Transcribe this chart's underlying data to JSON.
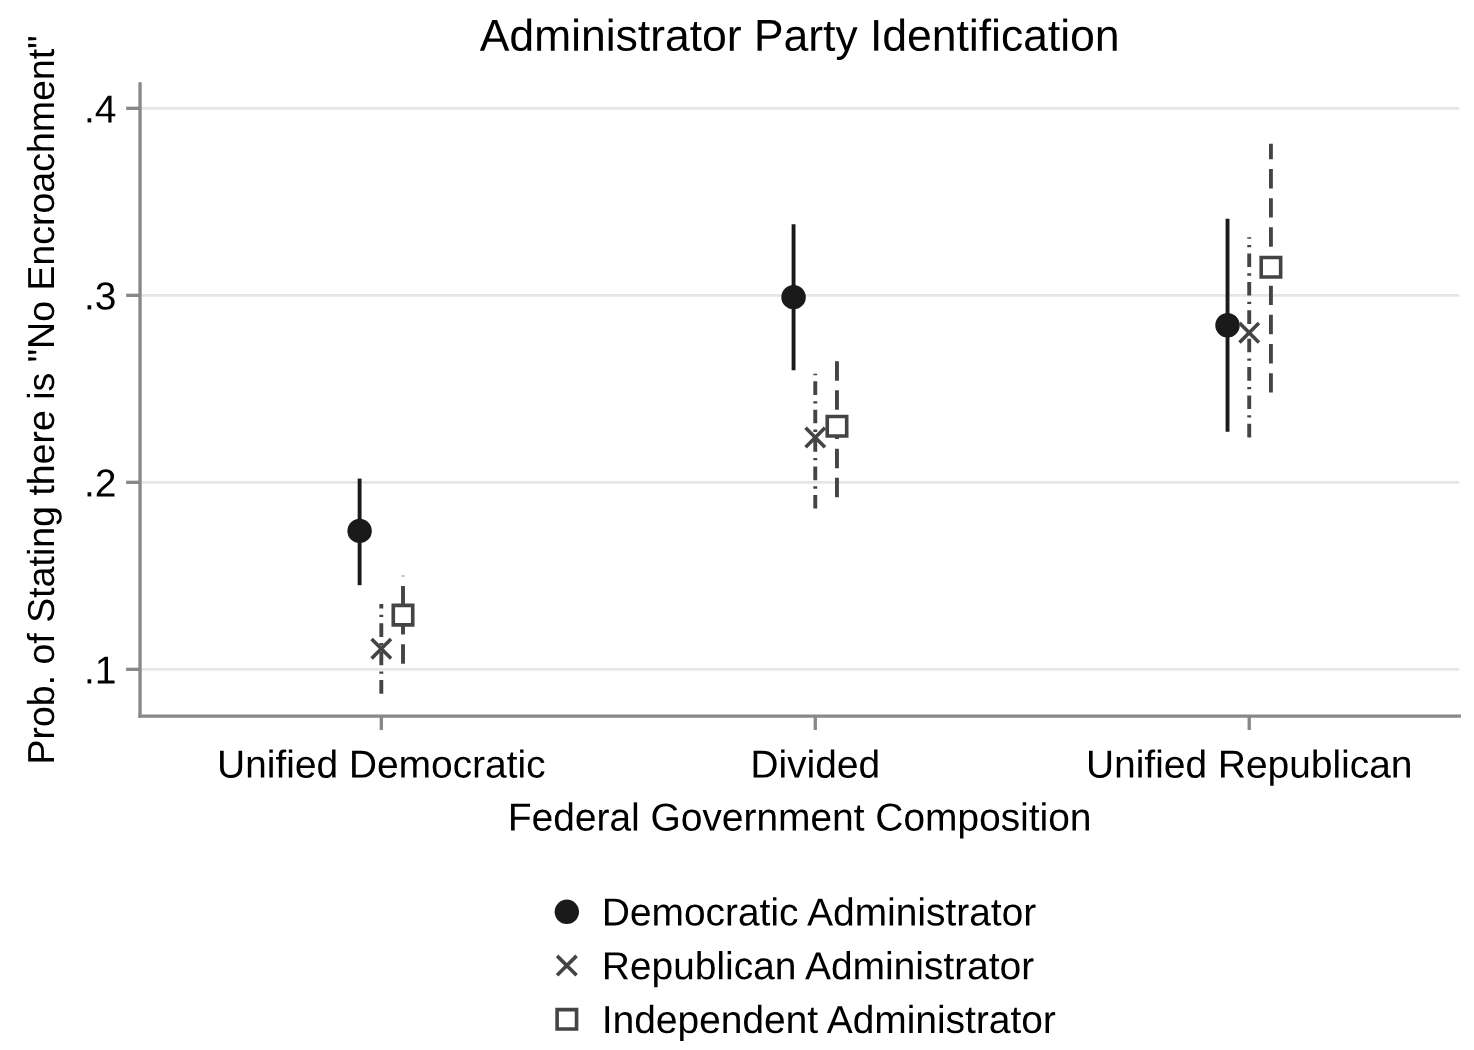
{
  "chart_data": {
    "type": "scatter",
    "title": "Administrator Party Identification",
    "xlabel": "Federal Government Composition",
    "ylabel": "Prob. of Stating there is \"No Encroachment\"",
    "categories": [
      "Unified Democratic",
      "Divided",
      "Unified Republican"
    ],
    "series": [
      {
        "name": "Democratic Administrator",
        "color": "#1a1a1a",
        "marker": "circle",
        "line_style": "solid",
        "values": [
          0.174,
          0.299,
          0.284
        ],
        "errors": [
          [
            0.145,
            0.202
          ],
          [
            0.26,
            0.338
          ],
          [
            0.227,
            0.341
          ]
        ]
      },
      {
        "name": "Republican Administrator",
        "color": "#444444",
        "marker": "cross",
        "line_style": "dashdot",
        "values": [
          0.111,
          0.224,
          0.28
        ],
        "errors": [
          [
            0.087,
            0.135
          ],
          [
            0.186,
            0.258
          ],
          [
            0.224,
            0.331
          ]
        ]
      },
      {
        "name": "Independent Administrator",
        "color": "#444444",
        "marker": "square",
        "line_style": "dashed",
        "values": [
          0.129,
          0.23,
          0.315
        ],
        "errors": [
          [
            0.103,
            0.15
          ],
          [
            0.192,
            0.267
          ],
          [
            0.248,
            0.381
          ]
        ]
      }
    ],
    "ylim": [
      0.075,
      0.413
    ],
    "yticks": [
      {
        "value": 0.1,
        "label": ".1"
      },
      {
        "value": 0.2,
        "label": ".2"
      },
      {
        "value": 0.3,
        "label": ".3"
      },
      {
        "value": 0.4,
        "label": ".4"
      }
    ],
    "grid": "y",
    "legend": "bottom"
  }
}
